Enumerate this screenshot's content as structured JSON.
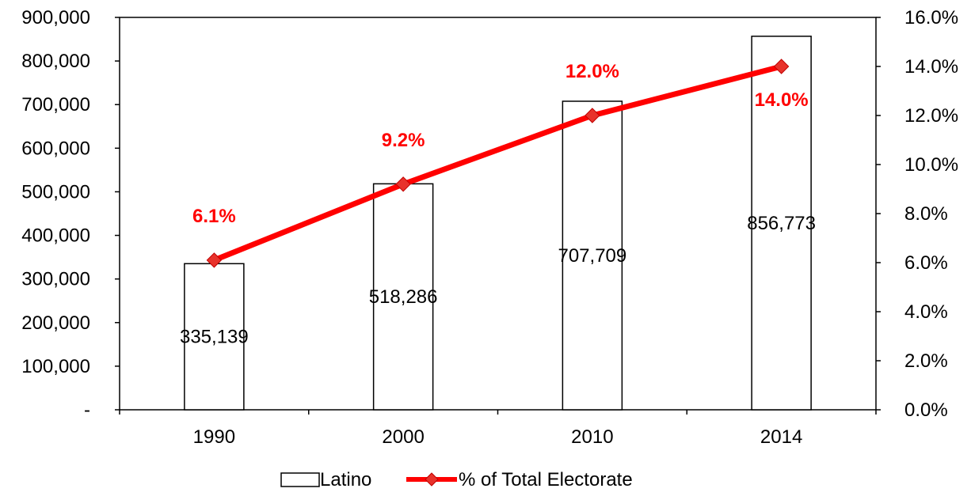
{
  "chart_data": {
    "type": "bar",
    "categories": [
      "1990",
      "2000",
      "2010",
      "2014"
    ],
    "series": [
      {
        "name": "Latino",
        "type": "bar",
        "axis": "left",
        "values": [
          335139,
          518286,
          707709,
          856773
        ],
        "data_labels": [
          "335,139",
          "518,286",
          "707,709",
          "856,773"
        ]
      },
      {
        "name": "% of Total Electorate",
        "type": "line",
        "axis": "right",
        "marker": "diamond",
        "values": [
          6.1,
          9.2,
          12.0,
          14.0
        ],
        "data_labels": [
          "6.1%",
          "9.2%",
          "12.0%",
          "14.0%"
        ]
      }
    ],
    "y_left": {
      "ylim": [
        0,
        900000
      ],
      "ticks": [
        0,
        100000,
        200000,
        300000,
        400000,
        500000,
        600000,
        700000,
        800000,
        900000
      ],
      "tick_labels": [
        "-",
        "100,000",
        "200,000",
        "300,000",
        "400,000",
        "500,000",
        "600,000",
        "700,000",
        "800,000",
        "900,000"
      ]
    },
    "y_right": {
      "ylim": [
        0,
        16
      ],
      "ticks": [
        0,
        2,
        4,
        6,
        8,
        10,
        12,
        14,
        16
      ],
      "tick_labels": [
        "0.0%",
        "2.0%",
        "4.0%",
        "6.0%",
        "8.0%",
        "10.0%",
        "12.0%",
        "14.0%",
        "16.0%"
      ]
    },
    "title": "",
    "xlabel": "",
    "ylabel": "",
    "grid": false,
    "legend": {
      "position": "bottom",
      "entries": [
        "Latino",
        "% of Total Electorate"
      ]
    },
    "colors": {
      "bar_fill": "#ffffff",
      "bar_stroke": "#000000",
      "line": "#ff0000",
      "marker": "#e8322b",
      "marker_stroke": "#c00000",
      "pct_label": "#ff0000"
    }
  }
}
